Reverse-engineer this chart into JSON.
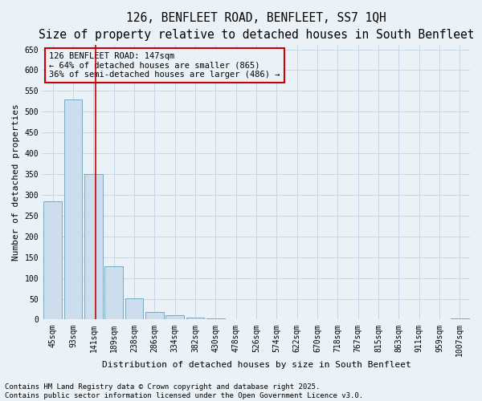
{
  "title_line1": "126, BENFLEET ROAD, BENFLEET, SS7 1QH",
  "title_line2": "Size of property relative to detached houses in South Benfleet",
  "xlabel": "Distribution of detached houses by size in South Benfleet",
  "ylabel": "Number of detached properties",
  "annotation_title": "126 BENFLEET ROAD: 147sqm",
  "annotation_line2": "← 64% of detached houses are smaller (865)",
  "annotation_line3": "36% of semi-detached houses are larger (486) →",
  "bar_color": "#ccdded",
  "bar_edge_color": "#7aaabf",
  "vline_color": "#cc0000",
  "vline_x_index": 2,
  "annotation_box_color": "#cc0000",
  "grid_color": "#c5d8e8",
  "background_color": "#eaf2f8",
  "categories": [
    "45sqm",
    "93sqm",
    "141sqm",
    "189sqm",
    "238sqm",
    "286sqm",
    "334sqm",
    "382sqm",
    "430sqm",
    "478sqm",
    "526sqm",
    "574sqm",
    "622sqm",
    "670sqm",
    "718sqm",
    "767sqm",
    "815sqm",
    "863sqm",
    "911sqm",
    "959sqm",
    "1007sqm"
  ],
  "values": [
    285,
    530,
    350,
    128,
    51,
    19,
    10,
    4,
    2,
    0,
    0,
    0,
    0,
    0,
    0,
    0,
    0,
    0,
    0,
    0,
    2
  ],
  "ylim": [
    0,
    660
  ],
  "yticks": [
    0,
    50,
    100,
    150,
    200,
    250,
    300,
    350,
    400,
    450,
    500,
    550,
    600,
    650
  ],
  "footer_line1": "Contains HM Land Registry data © Crown copyright and database right 2025.",
  "footer_line2": "Contains public sector information licensed under the Open Government Licence v3.0.",
  "title_fontsize": 10.5,
  "subtitle_fontsize": 9,
  "axis_label_fontsize": 8,
  "tick_fontsize": 7,
  "annotation_fontsize": 7.5,
  "footer_fontsize": 6.5
}
